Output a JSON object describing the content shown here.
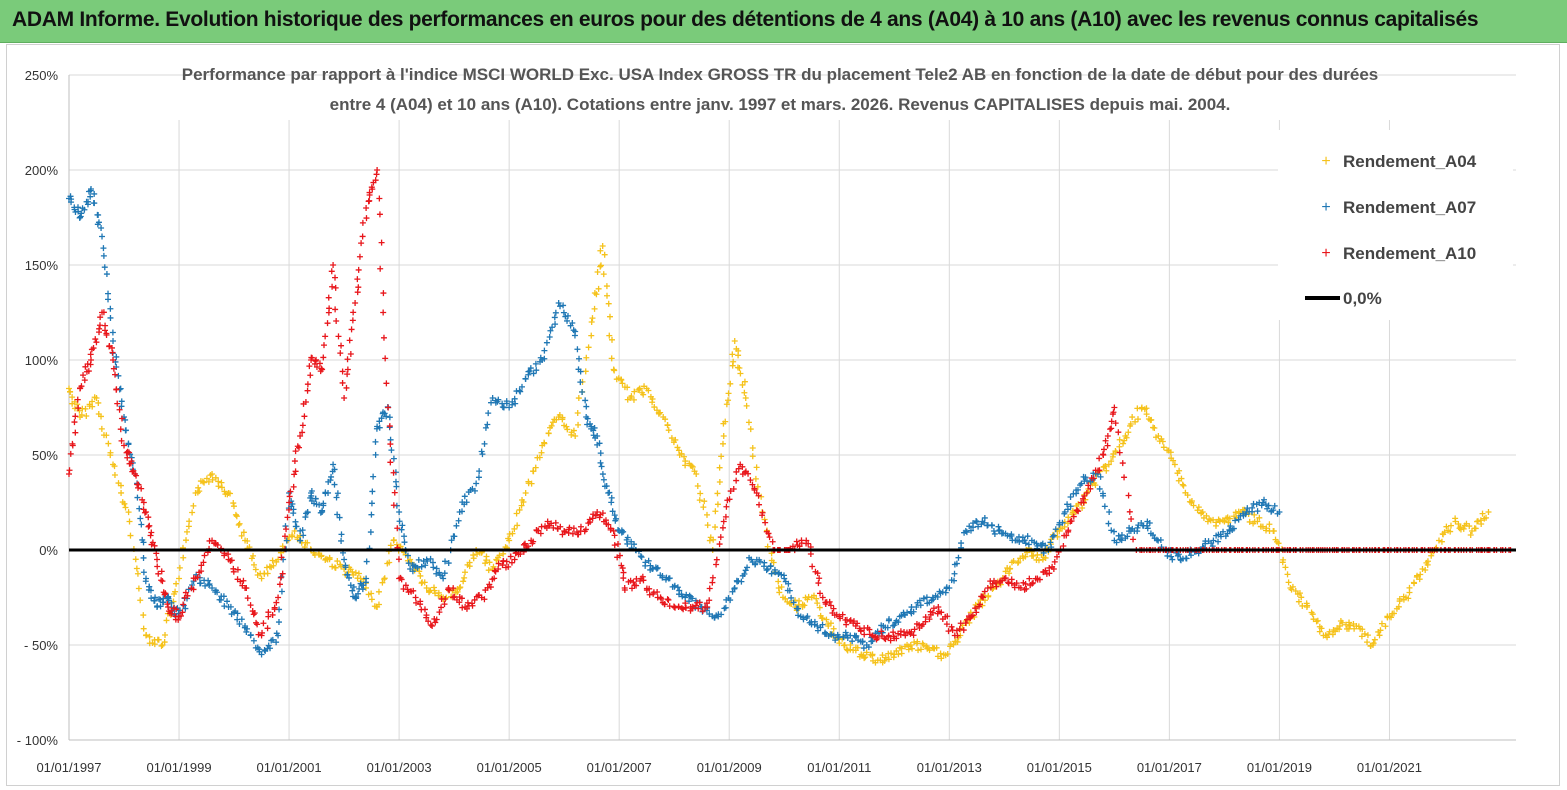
{
  "header": {
    "banner": "ADAM Informe. Evolution historique des performances en euros pour des détentions de 4 ans (A04) à 10 ans (A10) avec les revenus connus capitalisés"
  },
  "colors": {
    "banner": "#7acb7a",
    "a04": "#f5c21b",
    "a07": "#1f77b4",
    "a10": "#e8161b",
    "zero": "#000000",
    "grid": "#d9d9d9"
  },
  "chart_data": {
    "type": "scatter",
    "title_lines": [
      "Performance par rapport à l'indice MSCI WORLD Exc. USA Index GROSS TR  du placement Tele2 AB en fonction de la date de début pour des durées",
      "entre 4 (A04) et 10 ans (A10).  Cotations entre janv. 1997 et mars. 2026. Revenus CAPITALISES depuis mai. 2004."
    ],
    "xlim": [
      1997.0,
      2023.3
    ],
    "ylim": [
      -100,
      250
    ],
    "y_ticks": [
      250,
      200,
      150,
      100,
      50,
      0,
      -50,
      -100
    ],
    "y_tick_labels": [
      "250%",
      "200%",
      "150%",
      "100%",
      "50%",
      "0%",
      "- 50%",
      "- 100%"
    ],
    "x_ticks": [
      1997,
      1999,
      2001,
      2003,
      2005,
      2007,
      2009,
      2011,
      2013,
      2015,
      2017,
      2019,
      2021
    ],
    "x_tick_labels": [
      "01/01/1997",
      "01/01/1999",
      "01/01/2001",
      "01/01/2003",
      "01/01/2005",
      "01/01/2007",
      "01/01/2009",
      "01/01/2011",
      "01/01/2013",
      "01/01/2015",
      "01/01/2017",
      "01/01/2019",
      "01/01/2021"
    ],
    "legend": [
      "Rendement_A04",
      "Rendement_A07",
      "Rendement_A10",
      "0,0%"
    ],
    "legend_position": "top-right",
    "series": [
      {
        "name": "Rendement_A04",
        "x": [
          1997.0,
          1997.2,
          1997.5,
          1997.8,
          1998.1,
          1998.4,
          1998.7,
          1999.0,
          1999.3,
          1999.6,
          1999.9,
          2000.2,
          2000.5,
          2000.8,
          2001.1,
          2001.4,
          2001.7,
          2002.0,
          2002.3,
          2002.6,
          2002.9,
          2003.2,
          2003.5,
          2003.8,
          2004.1,
          2004.4,
          2004.7,
          2005.0,
          2005.3,
          2005.6,
          2005.9,
          2006.2,
          2006.5,
          2006.7,
          2006.9,
          2007.2,
          2007.5,
          2007.8,
          2008.1,
          2008.4,
          2008.7,
          2008.9,
          2009.1,
          2009.3,
          2009.6,
          2009.9,
          2010.2,
          2010.5,
          2010.8,
          2011.1,
          2011.4,
          2011.7,
          2012.0,
          2012.3,
          2012.6,
          2012.9,
          2013.2,
          2013.5,
          2013.8,
          2014.1,
          2014.4,
          2014.7,
          2015.0,
          2015.3,
          2015.6,
          2015.9,
          2016.2,
          2016.5,
          2016.8,
          2017.1,
          2017.4,
          2017.7,
          2018.0,
          2018.3,
          2018.6,
          2018.9,
          2019.2,
          2019.5,
          2019.8,
          2020.1,
          2020.4,
          2020.7,
          2021.0,
          2021.3,
          2021.6,
          2021.9,
          2022.2,
          2022.5,
          2022.8
        ],
        "y": [
          85,
          70,
          80,
          45,
          15,
          -45,
          -50,
          -15,
          30,
          40,
          30,
          5,
          -15,
          -5,
          10,
          0,
          -5,
          -10,
          -15,
          -30,
          5,
          -5,
          -20,
          -25,
          -20,
          0,
          -10,
          5,
          30,
          55,
          70,
          60,
          120,
          160,
          95,
          80,
          85,
          70,
          50,
          40,
          0,
          60,
          110,
          80,
          20,
          -20,
          -30,
          -25,
          -40,
          -50,
          -55,
          -58,
          -55,
          -50,
          -52,
          -55,
          -45,
          -30,
          -20,
          -10,
          0,
          -5,
          10,
          20,
          35,
          45,
          60,
          75,
          60,
          45,
          25,
          15,
          15,
          20,
          15,
          10,
          -20,
          -30,
          -45,
          -40,
          -40,
          -50,
          -35,
          -25,
          -10,
          5,
          15,
          10,
          20
        ]
      },
      {
        "name": "Rendement_A07",
        "x": [
          1997.0,
          1997.2,
          1997.4,
          1997.6,
          1997.8,
          1998.0,
          1998.2,
          1998.4,
          1998.6,
          1998.8,
          1999.0,
          1999.3,
          1999.6,
          1999.9,
          2000.2,
          2000.5,
          2000.8,
          2001.0,
          2001.2,
          2001.4,
          2001.6,
          2001.8,
          2002.0,
          2002.2,
          2002.4,
          2002.6,
          2002.8,
          2003.0,
          2003.2,
          2003.5,
          2003.8,
          2004.1,
          2004.4,
          2004.7,
          2005.0,
          2005.3,
          2005.6,
          2005.9,
          2006.2,
          2006.4,
          2006.6,
          2006.8,
          2007.0,
          2007.3,
          2007.6,
          2007.9,
          2008.2,
          2008.5,
          2008.8,
          2009.1,
          2009.4,
          2009.7,
          2010.0,
          2010.3,
          2010.6,
          2010.9,
          2011.2,
          2011.5,
          2011.8,
          2012.1,
          2012.4,
          2012.7,
          2013.0,
          2013.3,
          2013.6,
          2013.9,
          2014.2,
          2014.5,
          2014.8,
          2015.1,
          2015.4,
          2015.7,
          2016.0,
          2016.3,
          2016.6,
          2016.9,
          2017.2,
          2017.5,
          2017.8,
          2018.1,
          2018.4,
          2018.7,
          2019.0
        ],
        "y": [
          185,
          175,
          190,
          165,
          110,
          70,
          40,
          -15,
          -30,
          -25,
          -35,
          -15,
          -20,
          -30,
          -40,
          -55,
          -45,
          30,
          5,
          30,
          20,
          45,
          -5,
          -25,
          -15,
          65,
          75,
          20,
          -10,
          -5,
          -15,
          20,
          35,
          80,
          75,
          90,
          100,
          130,
          115,
          70,
          60,
          30,
          10,
          0,
          -10,
          -15,
          -25,
          -30,
          -35,
          -20,
          -5,
          -10,
          -15,
          -35,
          -40,
          -45,
          -45,
          -50,
          -40,
          -35,
          -30,
          -25,
          -20,
          10,
          15,
          10,
          5,
          5,
          0,
          20,
          35,
          40,
          5,
          10,
          15,
          0,
          -5,
          0,
          5,
          10,
          20,
          25,
          20
        ]
      },
      {
        "name": "Rendement_A10",
        "x": [
          1997.0,
          1997.2,
          1997.4,
          1997.6,
          1997.8,
          1998.0,
          1998.2,
          1998.4,
          1998.6,
          1998.8,
          1999.0,
          1999.3,
          1999.6,
          1999.9,
          2000.2,
          2000.5,
          2000.8,
          2001.0,
          2001.2,
          2001.4,
          2001.6,
          2001.8,
          2002.0,
          2002.2,
          2002.4,
          2002.6,
          2002.8,
          2003.0,
          2003.3,
          2003.6,
          2003.9,
          2004.2,
          2004.5,
          2004.8,
          2005.1,
          2005.4,
          2005.7,
          2006.0,
          2006.3,
          2006.6,
          2006.9,
          2007.1,
          2007.4,
          2007.7,
          2008.0,
          2008.3,
          2008.6,
          2008.9,
          2009.2,
          2009.5,
          2009.8,
          2010.1,
          2010.4,
          2010.7,
          2011.0,
          2011.3,
          2011.6,
          2011.9,
          2012.2,
          2012.5,
          2012.8,
          2013.1,
          2013.4,
          2013.7,
          2014.0,
          2014.3,
          2014.6,
          2014.9,
          2015.2,
          2015.5,
          2015.8,
          2016.0,
          2016.4,
          2016.8,
          2017.2,
          2017.6,
          2018.0,
          2018.4,
          2018.8,
          2019.2,
          2019.6,
          2020.0,
          2020.4,
          2020.8,
          2021.2,
          2021.6,
          2022.0,
          2022.4,
          2022.8,
          2023.2
        ],
        "y": [
          40,
          85,
          100,
          125,
          100,
          55,
          40,
          20,
          -5,
          -30,
          -35,
          -15,
          5,
          -5,
          -20,
          -45,
          -25,
          25,
          60,
          100,
          95,
          150,
          80,
          130,
          180,
          200,
          75,
          -15,
          -25,
          -40,
          -20,
          -30,
          -25,
          -10,
          -5,
          5,
          15,
          10,
          10,
          20,
          10,
          -20,
          -15,
          -25,
          -30,
          -30,
          -30,
          15,
          45,
          30,
          0,
          0,
          5,
          -25,
          -35,
          -40,
          -45,
          -45,
          -45,
          -40,
          -30,
          -45,
          -35,
          -20,
          -15,
          -20,
          -15,
          -10,
          15,
          30,
          50,
          75,
          0,
          0,
          0,
          0,
          0,
          0,
          0,
          0,
          0,
          0,
          0,
          0,
          0,
          0,
          0,
          0,
          0,
          0
        ]
      },
      {
        "name": "0,0%",
        "x": [
          1997.0,
          2023.3
        ],
        "y": [
          0,
          0
        ]
      }
    ]
  }
}
